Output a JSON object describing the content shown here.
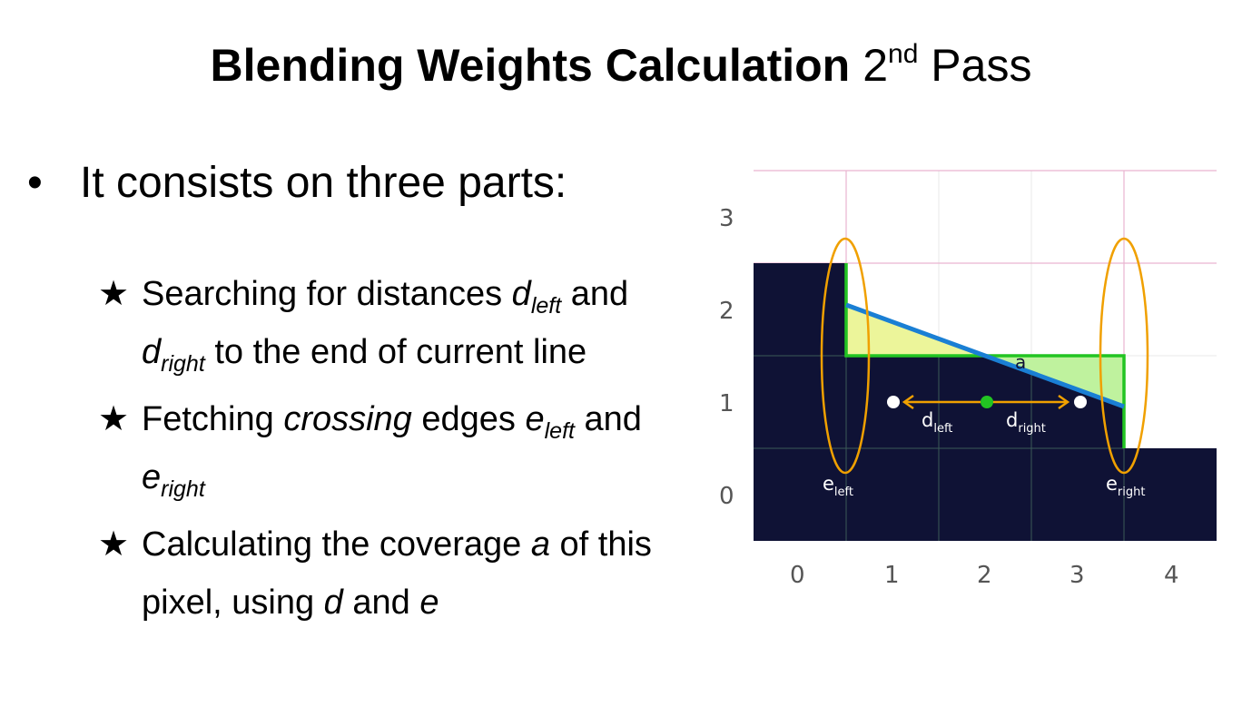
{
  "title": {
    "main": "Blending Weights Calculation",
    "pass_num": "2",
    "pass_sup": "nd",
    "pass_word": "Pass"
  },
  "bullet": {
    "symbol": "•",
    "text": "It consists on three parts:"
  },
  "parts": [
    {
      "star": "★",
      "t1": "Searching for distances ",
      "v1": "d",
      "s1": "left",
      "t2": " and ",
      "v2": "d",
      "s2": "right",
      "t3": " to the end of current line"
    },
    {
      "star": "★",
      "t1": "Fetching ",
      "em": "crossing",
      "t2": " edges ",
      "v1": "e",
      "s1": "left",
      "t3": " and ",
      "v2": "e",
      "s2": "right"
    },
    {
      "star": "★",
      "t1": "Calculating the coverage ",
      "v1": "a",
      "t2": " of this pixel, using ",
      "v2": "d",
      "t3": " and ",
      "v3": "e"
    }
  ],
  "diagram": {
    "x_ticks": [
      "0",
      "1",
      "2",
      "3",
      "4"
    ],
    "y_ticks": [
      "0",
      "1",
      "2",
      "3"
    ],
    "labels": {
      "d_left": "d",
      "d_left_sub": "left",
      "d_right": "d",
      "d_right_sub": "right",
      "e_left": "e",
      "e_left_sub": "left",
      "e_right": "e",
      "e_right_sub": "right",
      "a": "a"
    },
    "colors": {
      "dark": "#0f1235",
      "edge_blue": "#1a7fd4",
      "green": "#22c422",
      "yellow_fill": "#ecf59a",
      "green_fill": "#bff29e",
      "orange": "#f0a000",
      "grid_pink": "#e9b5d0"
    }
  }
}
